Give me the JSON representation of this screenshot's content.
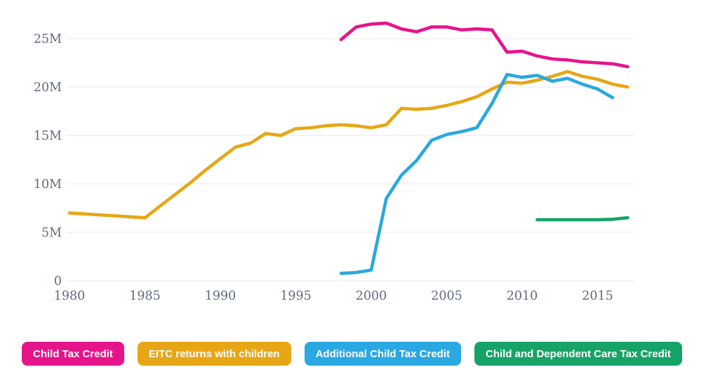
{
  "chart_data": {
    "type": "line",
    "title": "",
    "xlabel": "",
    "ylabel": "",
    "unit": "millions of returns",
    "grid": "horizontal",
    "legend_position": "bottom",
    "xlim": [
      1980,
      2017
    ],
    "ylim": [
      0,
      27.5
    ],
    "x_ticks": [
      "1980",
      "1985",
      "1990",
      "1995",
      "2000",
      "2005",
      "2010",
      "2015"
    ],
    "y_ticks": [
      {
        "value": 0,
        "label": "0"
      },
      {
        "value": 5,
        "label": "5M"
      },
      {
        "value": 10,
        "label": "10M"
      },
      {
        "value": 15,
        "label": "15M"
      },
      {
        "value": 20,
        "label": "20M"
      },
      {
        "value": 25,
        "label": "25M"
      }
    ],
    "series": [
      {
        "name": "Child Tax Credit",
        "color": "#e6148b",
        "points": [
          [
            1998,
            24.9
          ],
          [
            1999,
            26.2
          ],
          [
            2000,
            26.5
          ],
          [
            2001,
            26.6
          ],
          [
            2002,
            26.0
          ],
          [
            2003,
            25.7
          ],
          [
            2004,
            26.2
          ],
          [
            2005,
            26.2
          ],
          [
            2006,
            25.9
          ],
          [
            2007,
            26.0
          ],
          [
            2008,
            25.9
          ],
          [
            2009,
            23.6
          ],
          [
            2010,
            23.7
          ],
          [
            2011,
            23.2
          ],
          [
            2012,
            22.9
          ],
          [
            2013,
            22.8
          ],
          [
            2014,
            22.6
          ],
          [
            2015,
            22.5
          ],
          [
            2016,
            22.4
          ],
          [
            2017,
            22.1
          ]
        ]
      },
      {
        "name": "EITC returns with children",
        "color": "#e7a615",
        "points": [
          [
            1980,
            7.0
          ],
          [
            1981,
            6.9
          ],
          [
            1982,
            6.8
          ],
          [
            1983,
            6.7
          ],
          [
            1984,
            6.6
          ],
          [
            1985,
            6.5
          ],
          [
            1986,
            7.7
          ],
          [
            1987,
            8.9
          ],
          [
            1988,
            10.1
          ],
          [
            1989,
            11.4
          ],
          [
            1990,
            12.6
          ],
          [
            1991,
            13.8
          ],
          [
            1992,
            14.2
          ],
          [
            1993,
            15.2
          ],
          [
            1994,
            15.0
          ],
          [
            1995,
            15.7
          ],
          [
            1996,
            15.8
          ],
          [
            1997,
            16.0
          ],
          [
            1998,
            16.1
          ],
          [
            1999,
            16.0
          ],
          [
            2000,
            15.8
          ],
          [
            2001,
            16.1
          ],
          [
            2002,
            17.8
          ],
          [
            2003,
            17.7
          ],
          [
            2004,
            17.8
          ],
          [
            2005,
            18.1
          ],
          [
            2006,
            18.5
          ],
          [
            2007,
            19.0
          ],
          [
            2008,
            19.8
          ],
          [
            2009,
            20.5
          ],
          [
            2010,
            20.4
          ],
          [
            2011,
            20.7
          ],
          [
            2012,
            21.1
          ],
          [
            2013,
            21.6
          ],
          [
            2014,
            21.1
          ],
          [
            2015,
            20.8
          ],
          [
            2016,
            20.3
          ],
          [
            2017,
            20.0
          ]
        ]
      },
      {
        "name": "Additional Child Tax Credit",
        "color": "#29a8e1",
        "points": [
          [
            1998,
            0.75
          ],
          [
            1999,
            0.85
          ],
          [
            2000,
            1.1
          ],
          [
            2001,
            8.5
          ],
          [
            2002,
            10.9
          ],
          [
            2003,
            12.4
          ],
          [
            2004,
            14.5
          ],
          [
            2005,
            15.1
          ],
          [
            2006,
            15.4
          ],
          [
            2007,
            15.8
          ],
          [
            2008,
            18.3
          ],
          [
            2009,
            21.3
          ],
          [
            2010,
            21.0
          ],
          [
            2011,
            21.2
          ],
          [
            2012,
            20.6
          ],
          [
            2013,
            20.9
          ],
          [
            2014,
            20.3
          ],
          [
            2015,
            19.8
          ],
          [
            2016,
            18.9
          ]
        ]
      },
      {
        "name": "Child and Dependent Care Tax Credit",
        "color": "#17a368",
        "points": [
          [
            2011,
            6.3
          ],
          [
            2012,
            6.3
          ],
          [
            2013,
            6.3
          ],
          [
            2014,
            6.3
          ],
          [
            2015,
            6.3
          ],
          [
            2016,
            6.35
          ],
          [
            2017,
            6.5
          ]
        ]
      }
    ]
  },
  "legend": {
    "buttons": [
      {
        "label": "Child Tax Credit"
      },
      {
        "label": "EITC returns with children"
      },
      {
        "label": "Additional Child Tax Credit"
      },
      {
        "label": "Child and Dependent Care Tax Credit"
      }
    ]
  },
  "axis_style": {
    "label_color": "#5e6b7c",
    "grid_color": "#e7e7e7"
  }
}
